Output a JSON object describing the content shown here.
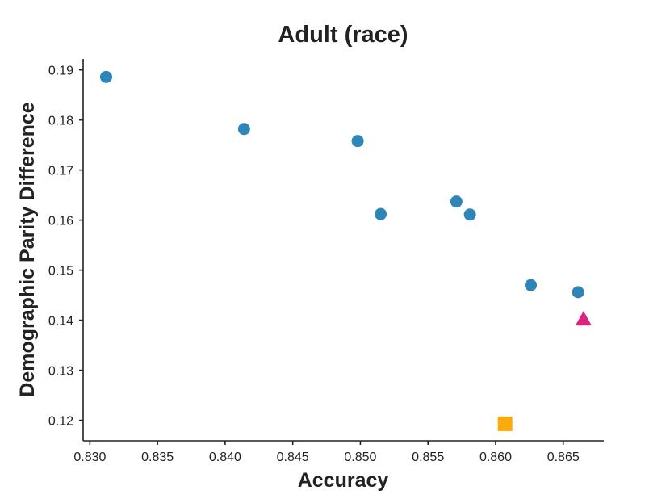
{
  "chart_data": {
    "type": "scatter",
    "title": "Adult (race)",
    "xlabel": "Accuracy",
    "ylabel": "Demographic Parity Difference",
    "xlim": [
      0.8295,
      0.868
    ],
    "ylim": [
      0.1159,
      0.1922
    ],
    "x_ticks": [
      "0.830",
      "0.835",
      "0.840",
      "0.845",
      "0.850",
      "0.855",
      "0.860",
      "0.865"
    ],
    "y_ticks": [
      "0.12",
      "0.13",
      "0.14",
      "0.15",
      "0.16",
      "0.17",
      "0.18",
      "0.19"
    ],
    "grid": false,
    "series": [
      {
        "marker": "circle",
        "color": "#2e86b8",
        "points": [
          {
            "x": 0.8312,
            "y": 0.1886
          },
          {
            "x": 0.8414,
            "y": 0.1782
          },
          {
            "x": 0.8498,
            "y": 0.1758
          },
          {
            "x": 0.8515,
            "y": 0.1612
          },
          {
            "x": 0.8571,
            "y": 0.1637
          },
          {
            "x": 0.8581,
            "y": 0.1611
          },
          {
            "x": 0.8626,
            "y": 0.147
          },
          {
            "x": 0.8661,
            "y": 0.1456
          }
        ]
      },
      {
        "marker": "triangle",
        "color": "#d6267f",
        "points": [
          {
            "x": 0.8665,
            "y": 0.1401
          }
        ]
      },
      {
        "marker": "square",
        "color": "#fbab0c",
        "points": [
          {
            "x": 0.8607,
            "y": 0.1193
          }
        ]
      }
    ]
  }
}
